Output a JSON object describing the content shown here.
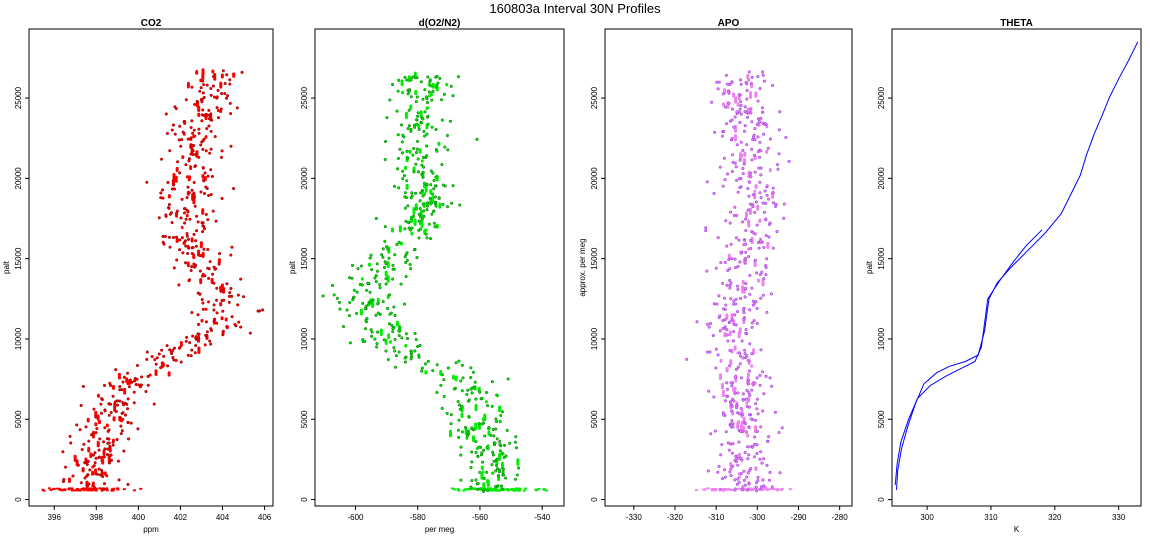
{
  "title": "160803a   Interval 30N Profiles",
  "chart_data": [
    {
      "type": "scatter",
      "title": "CO2",
      "xlabel": "ppm",
      "ylabel": "palt",
      "xlim": [
        394.8,
        406.4
      ],
      "ylim": [
        -400,
        29300
      ],
      "xticks": [
        396,
        398,
        400,
        402,
        404,
        406
      ],
      "yticks": [
        0,
        5000,
        10000,
        15000,
        20000,
        25000
      ],
      "color": "#ff0000",
      "edge_color": "#8b0000",
      "profile": [
        [
          397.6,
          600
        ],
        [
          397.8,
          1500
        ],
        [
          398.0,
          2500
        ],
        [
          398.2,
          3500
        ],
        [
          398.5,
          4500
        ],
        [
          398.8,
          5500
        ],
        [
          399.0,
          6500
        ],
        [
          399.5,
          7500
        ],
        [
          400.5,
          8200
        ],
        [
          401.5,
          9000
        ],
        [
          402.8,
          9800
        ],
        [
          403.8,
          10500
        ],
        [
          404.0,
          11500
        ],
        [
          403.8,
          12500
        ],
        [
          403.6,
          13500
        ],
        [
          403.2,
          14500
        ],
        [
          402.8,
          15500
        ],
        [
          402.6,
          16500
        ],
        [
          402.4,
          17500
        ],
        [
          402.3,
          18500
        ],
        [
          402.4,
          19500
        ],
        [
          402.5,
          20500
        ],
        [
          402.5,
          21500
        ],
        [
          402.7,
          22500
        ],
        [
          403.0,
          23500
        ],
        [
          403.2,
          24500
        ],
        [
          403.4,
          25500
        ],
        [
          403.6,
          26700
        ]
      ],
      "spread": 1.3
    },
    {
      "type": "scatter",
      "title": "d(O2/N2)",
      "xlabel": "per meg",
      "ylabel": "palt",
      "xlim": [
        -613,
        -533
      ],
      "ylim": [
        -400,
        29300
      ],
      "xticks": [
        -600,
        -580,
        -560,
        -540
      ],
      "yticks": [
        0,
        5000,
        10000,
        15000,
        20000,
        25000
      ],
      "color": "#00ee00",
      "edge_color": "#006400",
      "profile": [
        [
          -556,
          600
        ],
        [
          -556,
          2000
        ],
        [
          -558,
          3500
        ],
        [
          -561,
          5000
        ],
        [
          -562,
          6500
        ],
        [
          -566,
          7500
        ],
        [
          -574,
          8300
        ],
        [
          -582,
          9000
        ],
        [
          -588,
          10000
        ],
        [
          -592,
          11000
        ],
        [
          -594,
          12000
        ],
        [
          -595,
          13000
        ],
        [
          -592,
          14000
        ],
        [
          -587,
          15000
        ],
        [
          -583,
          16000
        ],
        [
          -580,
          17000
        ],
        [
          -578,
          18000
        ],
        [
          -578,
          19000
        ],
        [
          -580,
          20000
        ],
        [
          -581,
          21000
        ],
        [
          -580,
          22000
        ],
        [
          -579,
          23000
        ],
        [
          -580,
          24000
        ],
        [
          -578,
          25000
        ],
        [
          -577,
          26500
        ]
      ],
      "spread": 9
    },
    {
      "type": "scatter",
      "title": "APO",
      "xlabel": "",
      "ylabel": "approx. per meg",
      "xlim": [
        -337,
        -277
      ],
      "ylim": [
        -400,
        29300
      ],
      "xticks": [
        -330,
        -320,
        -310,
        -300,
        -290,
        -280
      ],
      "yticks": [
        0,
        5000,
        10000,
        15000,
        20000,
        25000
      ],
      "color": "#ee82ee",
      "edge_color": "#8a2be2",
      "profile": [
        [
          -303,
          600
        ],
        [
          -303,
          3000
        ],
        [
          -304,
          6000
        ],
        [
          -305,
          9000
        ],
        [
          -305,
          12000
        ],
        [
          -304,
          14500
        ],
        [
          -301,
          16500
        ],
        [
          -301,
          19000
        ],
        [
          -302,
          21500
        ],
        [
          -303,
          23500
        ],
        [
          -305,
          25500
        ],
        [
          -300,
          26700
        ]
      ],
      "spread": 6.5
    },
    {
      "type": "line",
      "title": "THETA",
      "xlabel": "K",
      "ylabel": "palt",
      "xlim": [
        294.5,
        333.5
      ],
      "ylim": [
        -400,
        29300
      ],
      "xticks": [
        300,
        310,
        320,
        330
      ],
      "yticks": [
        0,
        5000,
        10000,
        15000,
        20000,
        25000
      ],
      "color": "#0000ff",
      "series": [
        {
          "points": [
            [
              295.2,
              600
            ],
            [
              295.4,
              1800
            ],
            [
              296.0,
              3200
            ],
            [
              297.0,
              4600
            ],
            [
              298.2,
              6000
            ],
            [
              299.5,
              7200
            ],
            [
              301.5,
              7900
            ],
            [
              303.5,
              8300
            ],
            [
              306.0,
              8600
            ],
            [
              308.0,
              9000
            ],
            [
              309.0,
              10500
            ],
            [
              309.7,
              12500
            ],
            [
              311.0,
              13500
            ],
            [
              313.0,
              14400
            ],
            [
              315.5,
              15400
            ],
            [
              318.5,
              16600
            ],
            [
              321.0,
              17800
            ],
            [
              322.5,
              19000
            ],
            [
              324.0,
              20200
            ],
            [
              325.0,
              21500
            ],
            [
              326.2,
              22800
            ],
            [
              327.5,
              24000
            ],
            [
              328.5,
              25000
            ],
            [
              330.0,
              26200
            ],
            [
              331.5,
              27300
            ],
            [
              333.0,
              28500
            ]
          ]
        },
        {
          "points": [
            [
              295.0,
              900
            ],
            [
              295.3,
              2200
            ],
            [
              295.9,
              3600
            ],
            [
              297.1,
              5000
            ],
            [
              298.5,
              6300
            ],
            [
              300.5,
              7100
            ],
            [
              303.0,
              7700
            ],
            [
              305.5,
              8200
            ],
            [
              307.5,
              8600
            ],
            [
              308.5,
              9500
            ],
            [
              309.0,
              11000
            ],
            [
              309.5,
              12500
            ],
            [
              311.5,
              13700
            ],
            [
              313.5,
              14800
            ],
            [
              315.5,
              15800
            ],
            [
              318.0,
              16800
            ]
          ]
        }
      ]
    }
  ]
}
